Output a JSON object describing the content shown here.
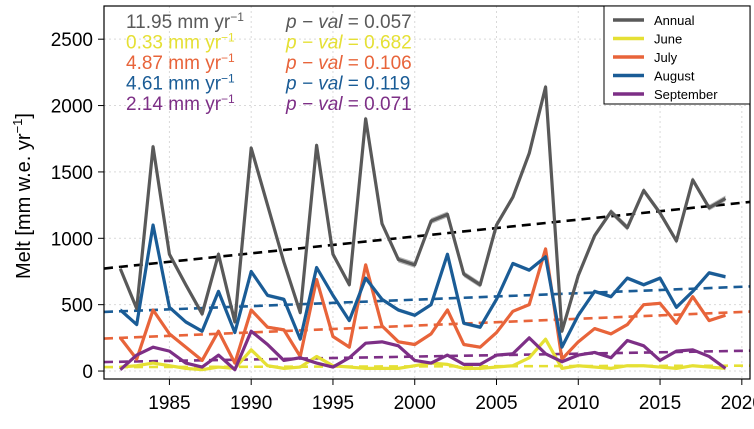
{
  "chart_data": {
    "type": "line",
    "title": "",
    "xlabel": "",
    "ylabel": "Melt  [mm w.e. yr",
    "ylabel_sup": "−1",
    "ylabel_close": "]",
    "xlim": [
      1981,
      2020.5
    ],
    "ylim": [
      -60,
      2750
    ],
    "x_ticks": [
      1985,
      1990,
      1995,
      2000,
      2005,
      2010,
      2015,
      2020
    ],
    "y_ticks": [
      0,
      500,
      1000,
      1500,
      2000,
      2500
    ],
    "x_tick_labels": [
      "1985",
      "1990",
      "1995",
      "2000",
      "2005",
      "2010",
      "2015",
      "2020"
    ],
    "y_tick_labels": [
      "0",
      "500",
      "1000",
      "1500",
      "2000",
      "2500"
    ],
    "grid": true,
    "legend_position": "top-right",
    "x": [
      1982,
      1983,
      1984,
      1985,
      1986,
      1987,
      1988,
      1989,
      1990,
      1991,
      1992,
      1993,
      1994,
      1995,
      1996,
      1997,
      1998,
      1999,
      2000,
      2001,
      2002,
      2003,
      2004,
      2005,
      2006,
      2007,
      2008,
      2009,
      2010,
      2011,
      2012,
      2013,
      2014,
      2015,
      2016,
      2017,
      2018,
      2019
    ],
    "series": [
      {
        "name": "Annual",
        "color": "#595959",
        "values": [
          770,
          470,
          1690,
          880,
          650,
          430,
          880,
          370,
          1680,
          1250,
          820,
          440,
          1700,
          880,
          650,
          1900,
          1110,
          840,
          800,
          1130,
          1180,
          730,
          650,
          1100,
          1310,
          1640,
          2140,
          300,
          720,
          1020,
          1200,
          1080,
          1360,
          1190,
          980,
          1440,
          1230,
          1300
        ],
        "trend": [
          785,
          1255
        ],
        "band": 22
      },
      {
        "name": "June",
        "color": "#e5e034",
        "values": [
          30,
          40,
          60,
          40,
          20,
          10,
          30,
          20,
          160,
          40,
          20,
          30,
          110,
          40,
          30,
          20,
          20,
          20,
          40,
          60,
          50,
          20,
          20,
          30,
          40,
          100,
          240,
          20,
          40,
          30,
          20,
          40,
          40,
          30,
          20,
          40,
          30,
          20
        ],
        "trend": [
          30,
          40
        ],
        "band": 6
      },
      {
        "name": "July",
        "color": "#e8643a",
        "values": [
          250,
          90,
          460,
          280,
          180,
          80,
          300,
          60,
          460,
          330,
          310,
          110,
          690,
          260,
          180,
          800,
          340,
          220,
          200,
          280,
          460,
          200,
          180,
          290,
          450,
          500,
          920,
          90,
          220,
          320,
          280,
          350,
          500,
          510,
          360,
          560,
          380,
          420
        ],
        "trend": [
          250,
          440
        ],
        "band": 12
      },
      {
        "name": "August",
        "color": "#1a5c96",
        "values": [
          460,
          350,
          1100,
          480,
          370,
          300,
          600,
          290,
          750,
          570,
          540,
          240,
          780,
          570,
          380,
          700,
          540,
          460,
          420,
          500,
          880,
          360,
          330,
          540,
          810,
          760,
          860,
          180,
          420,
          600,
          560,
          700,
          650,
          700,
          480,
          600,
          740,
          710
        ],
        "trend": [
          450,
          630
        ],
        "band": 14
      },
      {
        "name": "September",
        "color": "#7d2f86",
        "values": [
          10,
          120,
          180,
          150,
          60,
          30,
          120,
          10,
          300,
          200,
          80,
          100,
          60,
          30,
          100,
          210,
          220,
          190,
          80,
          60,
          120,
          50,
          50,
          120,
          130,
          250,
          130,
          70,
          120,
          140,
          100,
          230,
          190,
          80,
          150,
          160,
          110,
          20
        ],
        "trend": [
          70,
          150
        ],
        "band": 8
      }
    ],
    "annotations": [
      {
        "rate": "11.95 mm yr",
        "sup": "−1",
        "pval_label": "p − val",
        "pval": "= 0.057",
        "color": "#595959"
      },
      {
        "rate": "0.33 mm yr",
        "sup": "−1",
        "pval_label": "p − val",
        "pval": "= 0.682",
        "color": "#e5e034"
      },
      {
        "rate": "4.87 mm yr",
        "sup": "−1",
        "pval_label": "p − val",
        "pval": "= 0.106",
        "color": "#e8643a"
      },
      {
        "rate": "4.61 mm yr",
        "sup": "−1",
        "pval_label": "p − val",
        "pval": "= 0.119",
        "color": "#1a5c96"
      },
      {
        "rate": "2.14 mm yr",
        "sup": "−1",
        "pval_label": "p − val",
        "pval": "= 0.071",
        "color": "#7d2f86"
      }
    ]
  }
}
